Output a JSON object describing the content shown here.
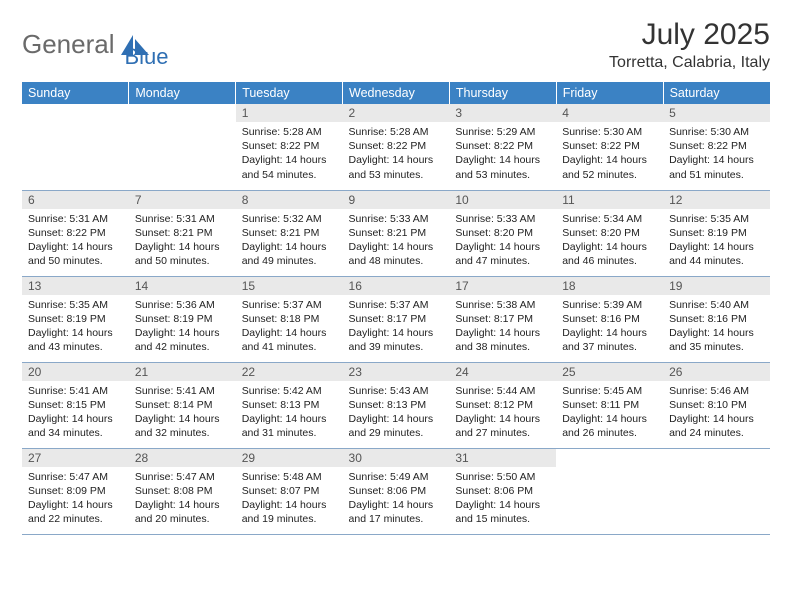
{
  "logo": {
    "part1": "General",
    "part2": "Blue",
    "color_gray": "#6a6a6a",
    "color_blue": "#2f6fb3"
  },
  "header": {
    "month_year": "July 2025",
    "location": "Torretta, Calabria, Italy"
  },
  "colors": {
    "header_bg": "#3b82c4",
    "daynum_bg": "#e9e9e9",
    "row_border": "#8aa8c8",
    "text": "#2a2a2a"
  },
  "day_labels": [
    "Sunday",
    "Monday",
    "Tuesday",
    "Wednesday",
    "Thursday",
    "Friday",
    "Saturday"
  ],
  "weeks": [
    [
      null,
      null,
      {
        "n": "1",
        "sr": "5:28 AM",
        "ss": "8:22 PM",
        "dl": "14 hours and 54 minutes."
      },
      {
        "n": "2",
        "sr": "5:28 AM",
        "ss": "8:22 PM",
        "dl": "14 hours and 53 minutes."
      },
      {
        "n": "3",
        "sr": "5:29 AM",
        "ss": "8:22 PM",
        "dl": "14 hours and 53 minutes."
      },
      {
        "n": "4",
        "sr": "5:30 AM",
        "ss": "8:22 PM",
        "dl": "14 hours and 52 minutes."
      },
      {
        "n": "5",
        "sr": "5:30 AM",
        "ss": "8:22 PM",
        "dl": "14 hours and 51 minutes."
      }
    ],
    [
      {
        "n": "6",
        "sr": "5:31 AM",
        "ss": "8:22 PM",
        "dl": "14 hours and 50 minutes."
      },
      {
        "n": "7",
        "sr": "5:31 AM",
        "ss": "8:21 PM",
        "dl": "14 hours and 50 minutes."
      },
      {
        "n": "8",
        "sr": "5:32 AM",
        "ss": "8:21 PM",
        "dl": "14 hours and 49 minutes."
      },
      {
        "n": "9",
        "sr": "5:33 AM",
        "ss": "8:21 PM",
        "dl": "14 hours and 48 minutes."
      },
      {
        "n": "10",
        "sr": "5:33 AM",
        "ss": "8:20 PM",
        "dl": "14 hours and 47 minutes."
      },
      {
        "n": "11",
        "sr": "5:34 AM",
        "ss": "8:20 PM",
        "dl": "14 hours and 46 minutes."
      },
      {
        "n": "12",
        "sr": "5:35 AM",
        "ss": "8:19 PM",
        "dl": "14 hours and 44 minutes."
      }
    ],
    [
      {
        "n": "13",
        "sr": "5:35 AM",
        "ss": "8:19 PM",
        "dl": "14 hours and 43 minutes."
      },
      {
        "n": "14",
        "sr": "5:36 AM",
        "ss": "8:19 PM",
        "dl": "14 hours and 42 minutes."
      },
      {
        "n": "15",
        "sr": "5:37 AM",
        "ss": "8:18 PM",
        "dl": "14 hours and 41 minutes."
      },
      {
        "n": "16",
        "sr": "5:37 AM",
        "ss": "8:17 PM",
        "dl": "14 hours and 39 minutes."
      },
      {
        "n": "17",
        "sr": "5:38 AM",
        "ss": "8:17 PM",
        "dl": "14 hours and 38 minutes."
      },
      {
        "n": "18",
        "sr": "5:39 AM",
        "ss": "8:16 PM",
        "dl": "14 hours and 37 minutes."
      },
      {
        "n": "19",
        "sr": "5:40 AM",
        "ss": "8:16 PM",
        "dl": "14 hours and 35 minutes."
      }
    ],
    [
      {
        "n": "20",
        "sr": "5:41 AM",
        "ss": "8:15 PM",
        "dl": "14 hours and 34 minutes."
      },
      {
        "n": "21",
        "sr": "5:41 AM",
        "ss": "8:14 PM",
        "dl": "14 hours and 32 minutes."
      },
      {
        "n": "22",
        "sr": "5:42 AM",
        "ss": "8:13 PM",
        "dl": "14 hours and 31 minutes."
      },
      {
        "n": "23",
        "sr": "5:43 AM",
        "ss": "8:13 PM",
        "dl": "14 hours and 29 minutes."
      },
      {
        "n": "24",
        "sr": "5:44 AM",
        "ss": "8:12 PM",
        "dl": "14 hours and 27 minutes."
      },
      {
        "n": "25",
        "sr": "5:45 AM",
        "ss": "8:11 PM",
        "dl": "14 hours and 26 minutes."
      },
      {
        "n": "26",
        "sr": "5:46 AM",
        "ss": "8:10 PM",
        "dl": "14 hours and 24 minutes."
      }
    ],
    [
      {
        "n": "27",
        "sr": "5:47 AM",
        "ss": "8:09 PM",
        "dl": "14 hours and 22 minutes."
      },
      {
        "n": "28",
        "sr": "5:47 AM",
        "ss": "8:08 PM",
        "dl": "14 hours and 20 minutes."
      },
      {
        "n": "29",
        "sr": "5:48 AM",
        "ss": "8:07 PM",
        "dl": "14 hours and 19 minutes."
      },
      {
        "n": "30",
        "sr": "5:49 AM",
        "ss": "8:06 PM",
        "dl": "14 hours and 17 minutes."
      },
      {
        "n": "31",
        "sr": "5:50 AM",
        "ss": "8:06 PM",
        "dl": "14 hours and 15 minutes."
      },
      null,
      null
    ]
  ],
  "labels": {
    "sunrise": "Sunrise: ",
    "sunset": "Sunset: ",
    "daylight": "Daylight: "
  }
}
